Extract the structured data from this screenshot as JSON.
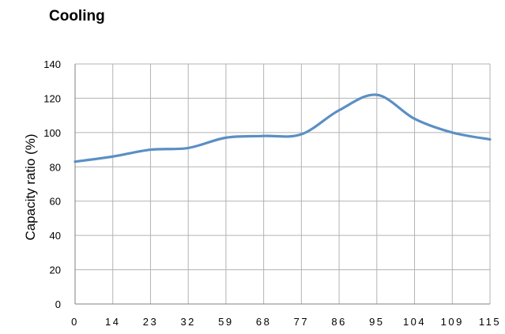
{
  "chart_data": {
    "type": "line",
    "title": "Cooling",
    "xlabel": "",
    "ylabel": "Capacity ratio (%)",
    "categories": [
      "0",
      "14",
      "23",
      "32",
      "59",
      "68",
      "77",
      "86",
      "95",
      "104",
      "109",
      "115"
    ],
    "series": [
      {
        "values": [
          83,
          86,
          90,
          91,
          97,
          98,
          99,
          113,
          122,
          108,
          100,
          96
        ]
      }
    ],
    "ylim": [
      0,
      140
    ],
    "yticks": [
      0,
      20,
      40,
      60,
      80,
      100,
      120,
      140
    ],
    "grid": true,
    "legend": "none",
    "colors": {
      "line": "#5b8fc4",
      "grid": "#b3b3b3",
      "axis": "#808080"
    }
  }
}
